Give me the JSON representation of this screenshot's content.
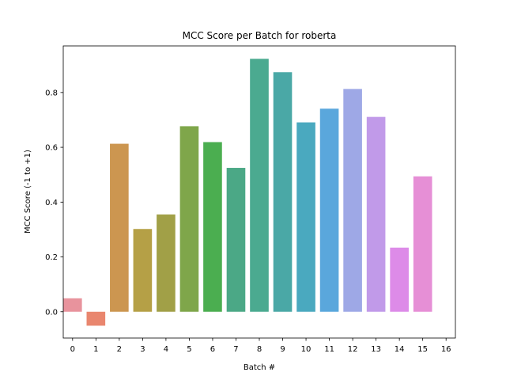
{
  "chart_data": {
    "type": "bar",
    "title": "MCC Score per Batch for roberta",
    "xlabel": "Batch #",
    "ylabel": "MCC Score (-1 to +1)",
    "categories": [
      "0",
      "1",
      "2",
      "3",
      "4",
      "5",
      "6",
      "7",
      "8",
      "9",
      "10",
      "11",
      "12",
      "13",
      "14",
      "15",
      "16"
    ],
    "values": [
      0.049,
      -0.051,
      0.613,
      0.302,
      0.355,
      0.677,
      0.619,
      0.525,
      0.923,
      0.874,
      0.691,
      0.741,
      0.813,
      0.711,
      0.234,
      0.494,
      null
    ],
    "colors": [
      "#e8939d",
      "#e9866e",
      "#cc9650",
      "#b5a046",
      "#a1a047",
      "#7fa64a",
      "#4bae50",
      "#4ba886",
      "#4baa90",
      "#4aa8a6",
      "#4aa9bf",
      "#5aa7dc",
      "#9ea8e6",
      "#c19ae9",
      "#dd8be8",
      "#e68fd6",
      "#e58fc4"
    ],
    "yticks": [
      0.0,
      0.2,
      0.4,
      0.6,
      0.8
    ],
    "ytick_labels": [
      "0.0",
      "0.2",
      "0.4",
      "0.6",
      "0.8"
    ],
    "ylim": [
      -0.096,
      0.97
    ],
    "grid": false,
    "legend": "none"
  }
}
